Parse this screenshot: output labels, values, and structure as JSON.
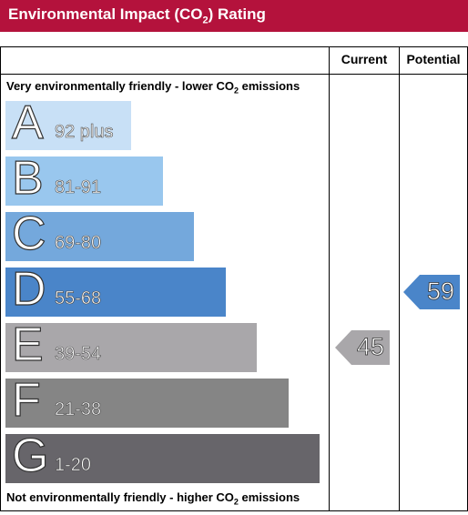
{
  "header": {
    "title_pre": "Environmental Impact (CO",
    "title_sub": "2",
    "title_post": ") Rating",
    "color": "#b4123c"
  },
  "columns": {
    "current": "Current",
    "potential": "Potential"
  },
  "notes": {
    "top_pre": "Very environmentally friendly - lower CO",
    "top_sub": "2",
    "top_post": " emissions",
    "bottom_pre": "Not environmentally friendly - higher CO",
    "bottom_sub": "2",
    "bottom_post": " emissions"
  },
  "chart_data": {
    "type": "bar",
    "categories": [
      "A",
      "B",
      "C",
      "D",
      "E",
      "F",
      "G"
    ],
    "ranges": [
      "92 plus",
      "81-91",
      "69-80",
      "55-68",
      "39-54",
      "21-38",
      "1-20"
    ],
    "colors": [
      "#c8e0f6",
      "#99c7ee",
      "#74a8dc",
      "#4a85c9",
      "#a9a7aa",
      "#858585",
      "#67656a"
    ],
    "current": {
      "value": 45,
      "band": "E",
      "color": "#a9a7aa"
    },
    "potential": {
      "value": 59,
      "band": "D",
      "color": "#4a85c9"
    }
  }
}
